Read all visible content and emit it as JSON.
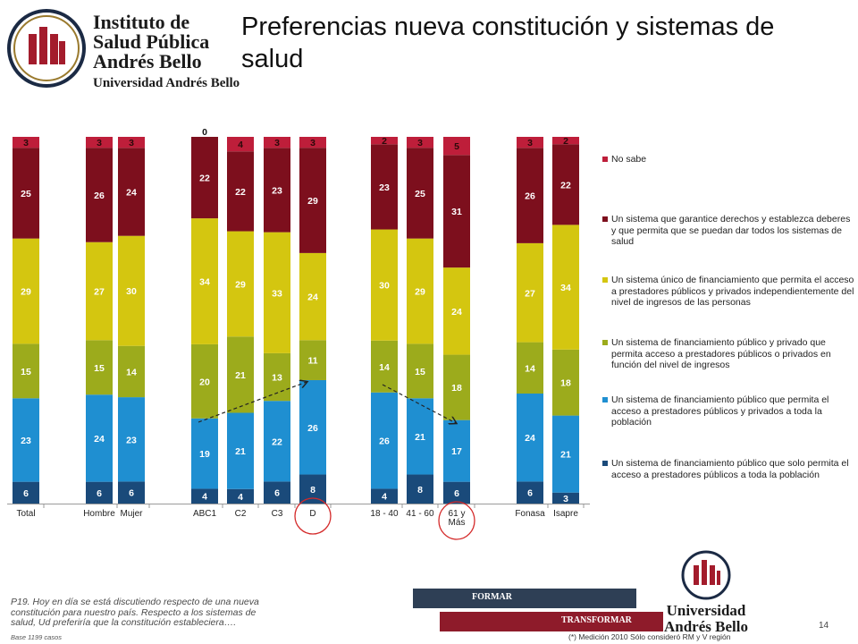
{
  "header": {
    "title": "Preferencias nueva constitución y sistemas de salud",
    "logo_lines": [
      "Instituto de",
      "Salud Pública",
      "Andrés Bello",
      "Universidad Andrés Bello"
    ]
  },
  "chart_data": {
    "type": "bar",
    "stacked": true,
    "normalized": true,
    "categories": [
      "Total",
      "Hombre",
      "Mujer",
      "ABC1",
      "C2",
      "C3",
      "D",
      "18 - 40",
      "41 - 60",
      "61 y Más",
      "Fonasa",
      "Isapre"
    ],
    "series": [
      {
        "name": "Un sistema de financiamiento  público que solo permita el acceso a prestadores públicos a toda la población",
        "color": "#1a4a7a",
        "values": [
          6,
          6,
          6,
          4,
          4,
          6,
          8,
          4,
          8,
          6,
          6,
          3
        ]
      },
      {
        "name": "Un sistema de financiamiento  público que permita el acceso a prestadores públicos y privados a toda la población",
        "color": "#1f8fd1",
        "values": [
          23,
          24,
          23,
          19,
          21,
          22,
          26,
          26,
          21,
          17,
          24,
          21
        ]
      },
      {
        "name": "Un sistema de financiamiento público y privado que permita acceso a prestadores públicos o privados en función del nivel de ingresos",
        "color": "#9cab1c",
        "values": [
          15,
          15,
          14,
          20,
          21,
          13,
          11,
          14,
          15,
          18,
          14,
          18
        ]
      },
      {
        "name": "Un sistema único de financiamiento que permita el acceso a prestadores públicos y privados independientemente del nivel de ingresos de las personas",
        "color": "#d4c610",
        "values": [
          29,
          27,
          30,
          34,
          29,
          33,
          24,
          30,
          29,
          24,
          27,
          34
        ]
      },
      {
        "name": "Un sistema que garantice derechos y establezca deberes y que permita que se puedan dar todos los sistemas de salud",
        "color": "#7d0f1d",
        "values": [
          25,
          26,
          24,
          22,
          22,
          23,
          29,
          23,
          25,
          31,
          26,
          22
        ]
      },
      {
        "name": "No sabe",
        "color": "#be1e3a",
        "values": [
          3,
          3,
          3,
          0,
          4,
          3,
          3,
          2,
          3,
          5,
          3,
          2
        ]
      }
    ],
    "legend_order": [
      5,
      4,
      3,
      2,
      1,
      0
    ],
    "legend_position": "right",
    "grid": false,
    "annotations": [
      "dashed arrow ABC1 → D",
      "dashed arrow 18 - 40 → 61 y Más",
      "red circle around D",
      "red circle around 61 y Más"
    ]
  },
  "question": "P19. Hoy en día se está discutiendo respecto de una nueva constitución para nuestro país. Respecto a los sistemas de salud, Ud preferiría que la constitución estableciera….",
  "base": "Base 1199 casos",
  "footnote": "(*) Medición 2010 Sólo consideró RM y V región",
  "page_number": "14",
  "banner": {
    "formar": "FORMAR",
    "transformar": "TRANSFORMAR"
  },
  "university_logo": [
    "Universidad",
    "Andrés Bello"
  ]
}
